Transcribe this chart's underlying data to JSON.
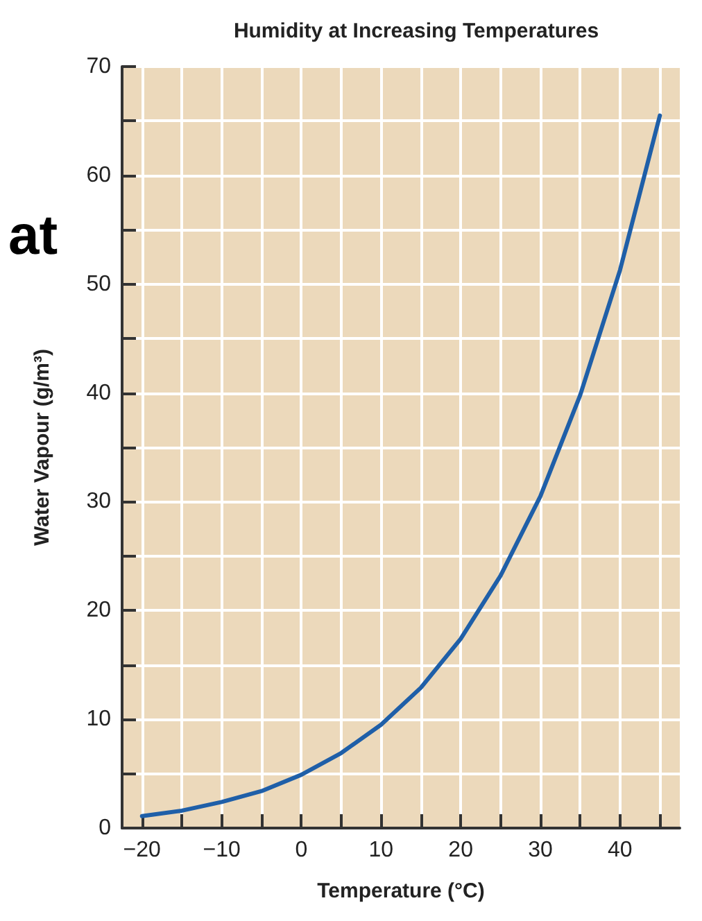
{
  "chart_data": {
    "type": "line",
    "title": "Humidity at Increasing Temperatures",
    "xlabel": "Temperature (°C)",
    "ylabel": "Water Vapour (g/m³)",
    "annotations": [
      "at"
    ],
    "x": [
      -20,
      -15,
      -10,
      -5,
      0,
      5,
      10,
      15,
      20,
      25,
      30,
      35,
      40,
      45
    ],
    "series": [
      {
        "color": "#1f5fa8",
        "values": [
          1.1,
          1.6,
          2.4,
          3.4,
          4.9,
          6.9,
          9.5,
          12.9,
          17.4,
          23.2,
          30.5,
          39.8,
          51.3,
          65.5
        ]
      }
    ],
    "xlim": [
      -22.5,
      47.5
    ],
    "ylim": [
      0,
      70
    ],
    "xticks": [
      {
        "value": -20,
        "label": "−20"
      },
      {
        "value": -15,
        "label": null
      },
      {
        "value": -10,
        "label": "−10"
      },
      {
        "value": -5,
        "label": null
      },
      0,
      {
        "value": 5,
        "label": null
      },
      10,
      {
        "value": 15,
        "label": null
      },
      20,
      {
        "value": 25,
        "label": null
      },
      30,
      {
        "value": 35,
        "label": null
      },
      40,
      {
        "value": 45,
        "label": null
      }
    ],
    "yticks": [
      0,
      {
        "value": 5,
        "label": null
      },
      10,
      {
        "value": 15,
        "label": null
      },
      20,
      {
        "value": 25,
        "label": null
      },
      30,
      {
        "value": 35,
        "label": null
      },
      40,
      {
        "value": 45,
        "label": null
      },
      50,
      {
        "value": 55,
        "label": null
      },
      60,
      {
        "value": 65,
        "label": null
      },
      70
    ],
    "grid": true,
    "marker": "none",
    "line_style": "solid"
  }
}
